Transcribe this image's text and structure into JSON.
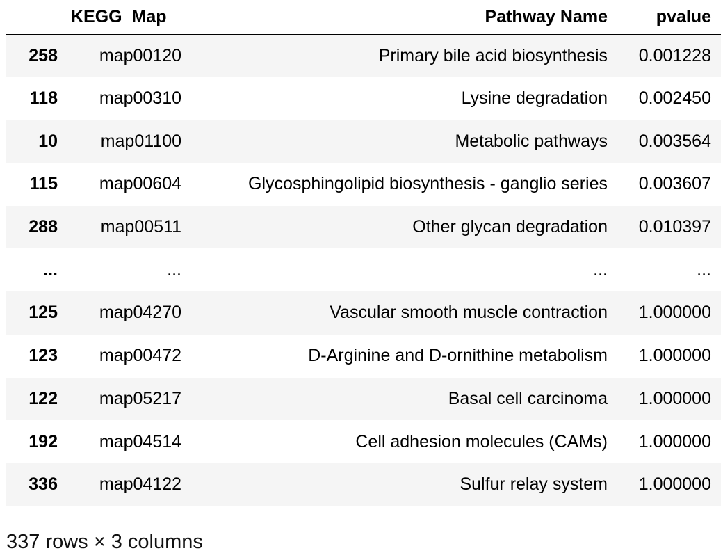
{
  "table": {
    "columns": [
      "",
      "KEGG_Map",
      "Pathway Name",
      "pvalue"
    ],
    "rows": [
      {
        "index": "258",
        "kegg_map": "map00120",
        "pathway_name": "Primary bile acid biosynthesis",
        "pvalue": "0.001228"
      },
      {
        "index": "118",
        "kegg_map": "map00310",
        "pathway_name": "Lysine degradation",
        "pvalue": "0.002450"
      },
      {
        "index": "10",
        "kegg_map": "map01100",
        "pathway_name": "Metabolic pathways",
        "pvalue": "0.003564"
      },
      {
        "index": "115",
        "kegg_map": "map00604",
        "pathway_name": "Glycosphingolipid biosynthesis - ganglio series",
        "pvalue": "0.003607"
      },
      {
        "index": "288",
        "kegg_map": "map00511",
        "pathway_name": "Other glycan degradation",
        "pvalue": "0.010397"
      },
      {
        "index": "...",
        "kegg_map": "...",
        "pathway_name": "...",
        "pvalue": "..."
      },
      {
        "index": "125",
        "kegg_map": "map04270",
        "pathway_name": "Vascular smooth muscle contraction",
        "pvalue": "1.000000"
      },
      {
        "index": "123",
        "kegg_map": "map00472",
        "pathway_name": "D-Arginine and D-ornithine metabolism",
        "pvalue": "1.000000"
      },
      {
        "index": "122",
        "kegg_map": "map05217",
        "pathway_name": "Basal cell carcinoma",
        "pvalue": "1.000000"
      },
      {
        "index": "192",
        "kegg_map": "map04514",
        "pathway_name": "Cell adhesion molecules (CAMs)",
        "pvalue": "1.000000"
      },
      {
        "index": "336",
        "kegg_map": "map04122",
        "pathway_name": "Sulfur relay system",
        "pvalue": "1.000000"
      }
    ]
  },
  "footer": {
    "shape_text": "337 rows × 3 columns"
  }
}
